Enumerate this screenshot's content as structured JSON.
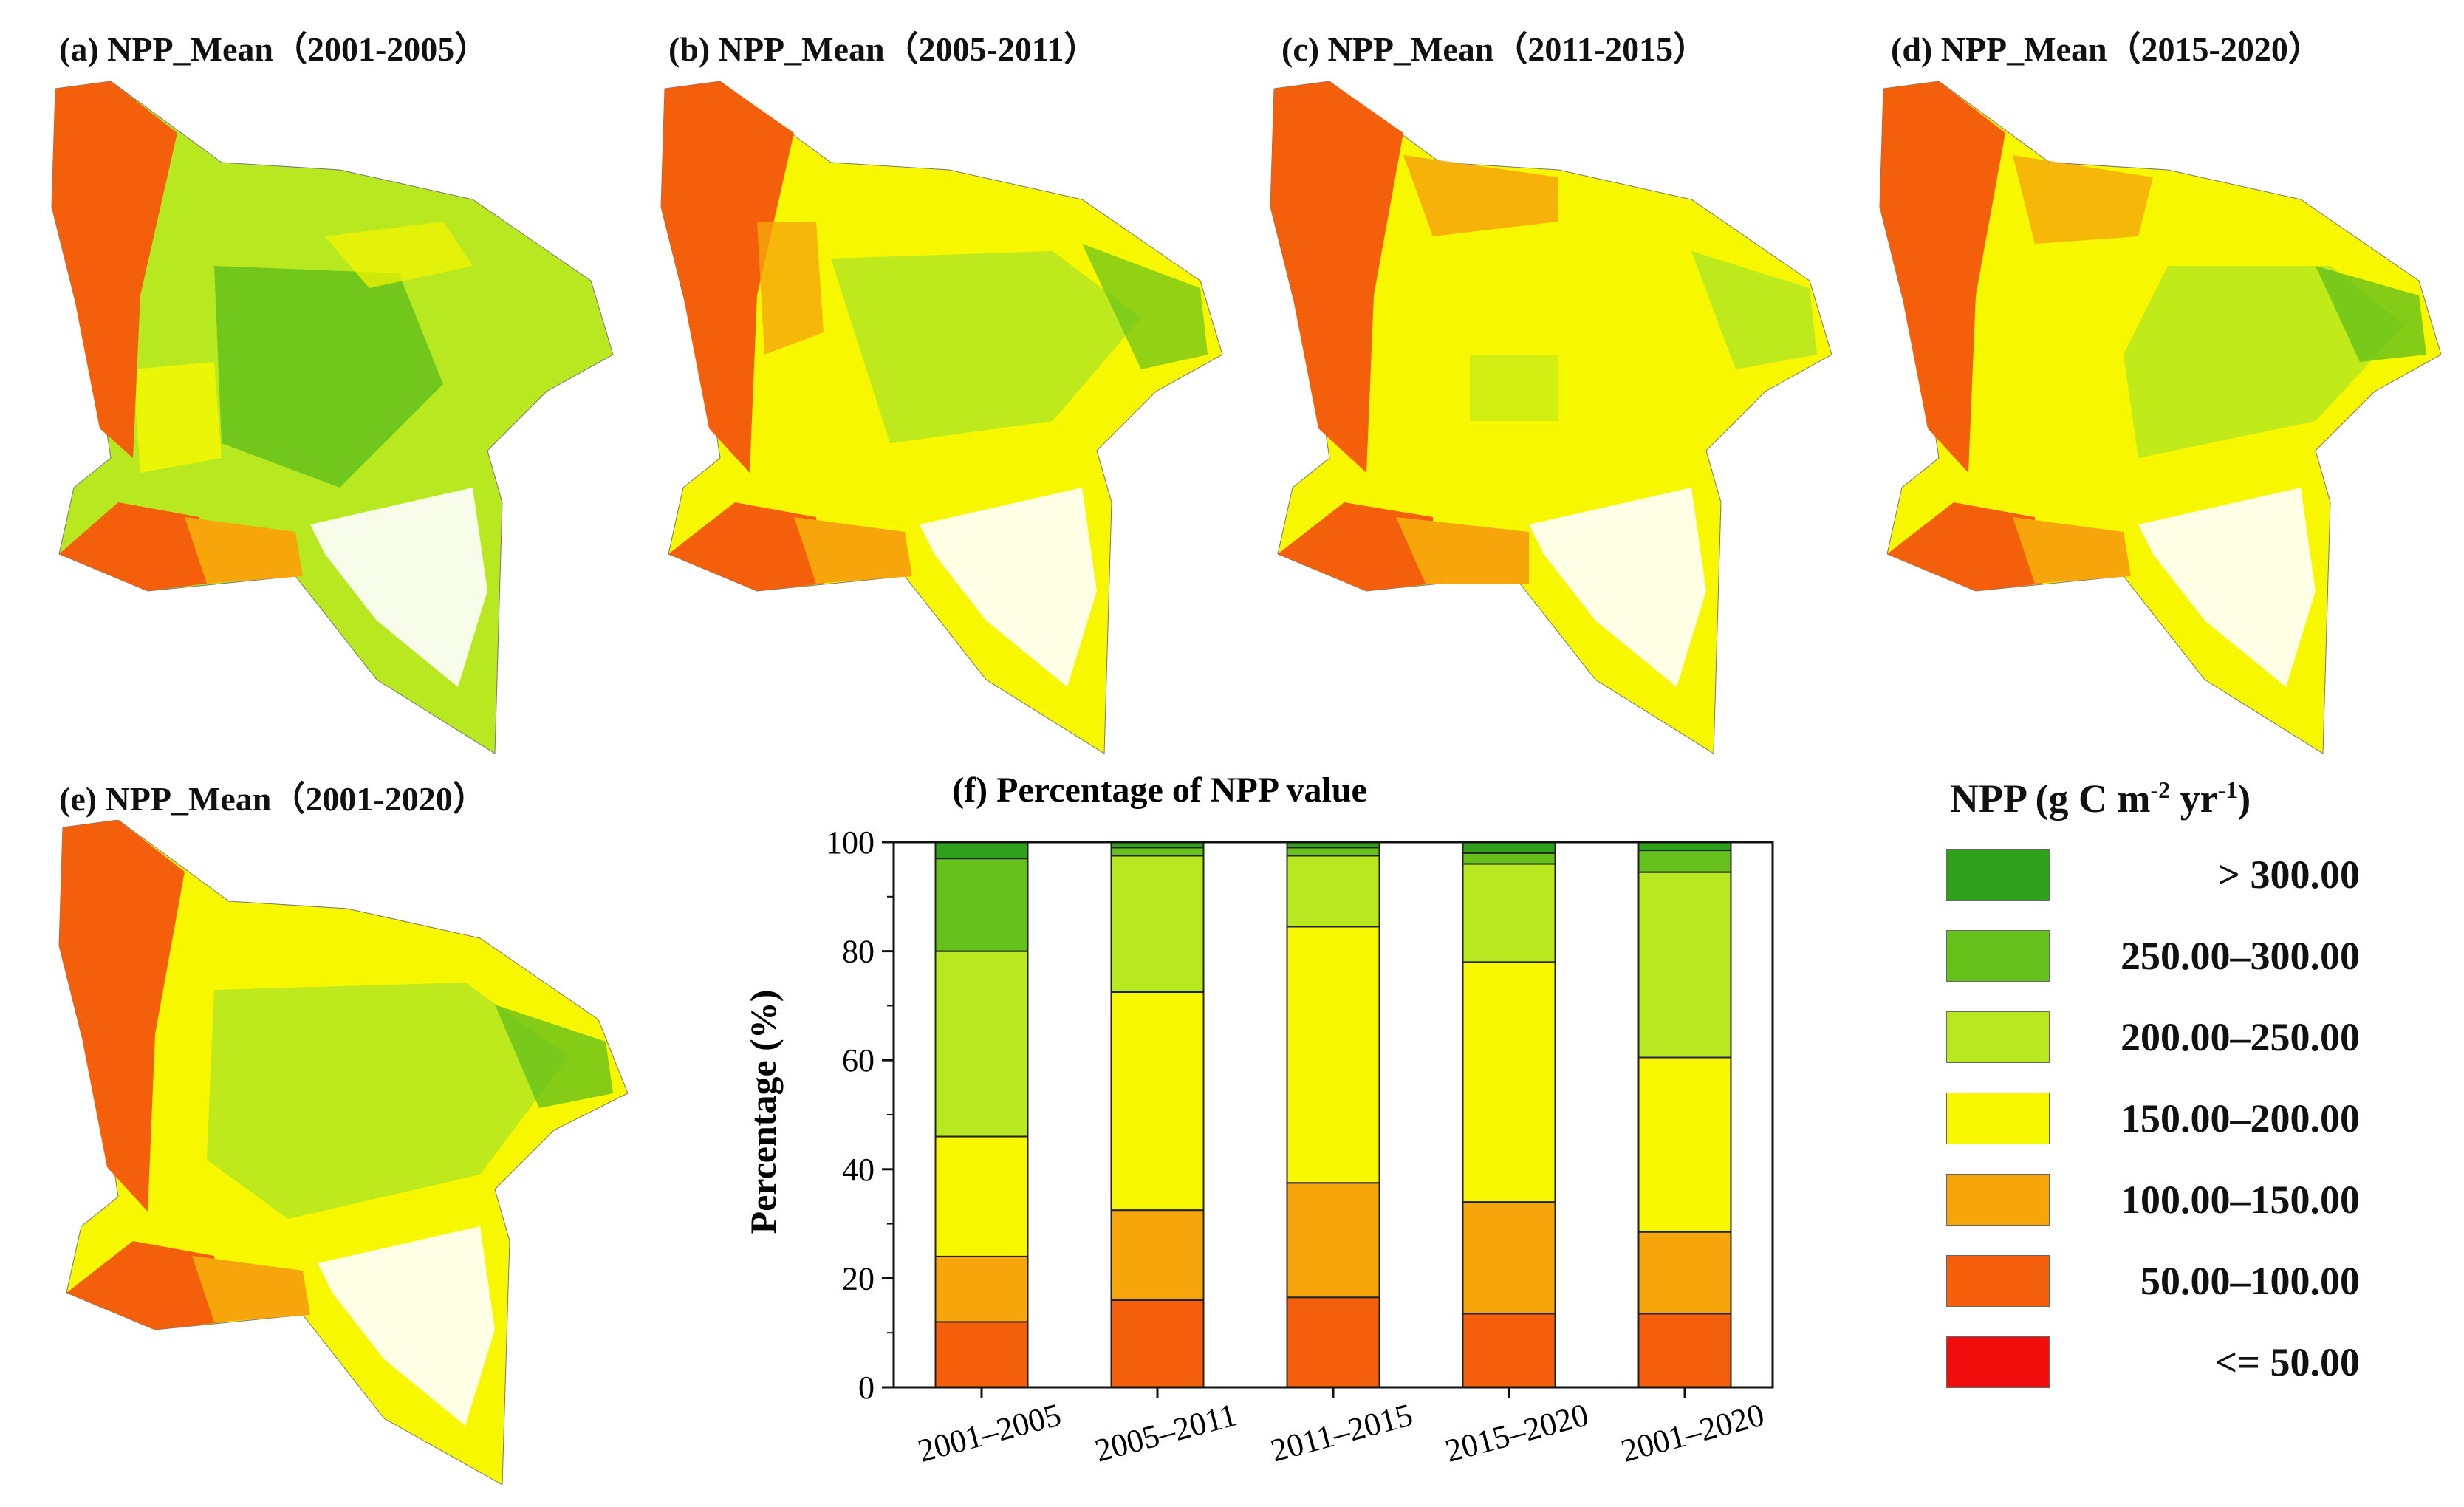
{
  "maps": [
    {
      "label": "(a) NPP_Mean（2001-2005）"
    },
    {
      "label": "(b) NPP_Mean（2005-2011）"
    },
    {
      "label": "(c) NPP_Mean（2011-2015）"
    },
    {
      "label": "(d) NPP_Mean（2015-2020）"
    },
    {
      "label": "(e) NPP_Mean（2001-2020）"
    }
  ],
  "colors": {
    "c300": "#2ea01a",
    "c250": "#66c11c",
    "c200": "#b7e820",
    "c150": "#f7f700",
    "c100": "#f6a60b",
    "c50": "#f45f0c",
    "c0": "#f20d0d"
  },
  "legend": {
    "title": "NPP (g C m",
    "title_exp1": "-2",
    "title_mid": " yr",
    "title_exp2": "-1",
    "title_end": ")",
    "items": [
      {
        "label": "> 300.00",
        "color": "#2ea01a"
      },
      {
        "label": "250.00–300.00",
        "color": "#66c11c"
      },
      {
        "label": "200.00–250.00",
        "color": "#b7e820"
      },
      {
        "label": "150.00–200.00",
        "color": "#f7f700"
      },
      {
        "label": "100.00–150.00",
        "color": "#f6a60b"
      },
      {
        "label": "50.00–100.00",
        "color": "#f45f0c"
      },
      {
        "label": "<= 50.00",
        "color": "#f20d0d"
      }
    ]
  },
  "chart_data": {
    "type": "bar",
    "stacked": true,
    "title": "(f) Percentage of NPP value",
    "xlabel": "",
    "ylabel": "Percentage (%)",
    "ylim": [
      0,
      100
    ],
    "yticks": [
      0,
      20,
      40,
      60,
      80,
      100
    ],
    "categories": [
      "2001–2005",
      "2005–2011",
      "2011–2015",
      "2015–2020",
      "2001–2020"
    ],
    "series": [
      {
        "name": "<= 50.00",
        "color": "#f20d0d",
        "values": [
          0,
          0,
          0,
          0,
          0
        ]
      },
      {
        "name": "50.00–100.00",
        "color": "#f45f0c",
        "values": [
          12,
          16,
          16.5,
          13.5,
          13.5
        ]
      },
      {
        "name": "100.00–150.00",
        "color": "#f6a60b",
        "values": [
          12,
          16.5,
          21,
          20.5,
          15
        ]
      },
      {
        "name": "150.00–200.00",
        "color": "#f7f700",
        "values": [
          22,
          40,
          47,
          44,
          32
        ]
      },
      {
        "name": "200.00–250.00",
        "color": "#b7e820",
        "values": [
          34,
          25,
          13,
          18,
          34
        ]
      },
      {
        "name": "250.00–300.00",
        "color": "#66c11c",
        "values": [
          17,
          1.5,
          1.5,
          2,
          4
        ]
      },
      {
        "name": "> 300.00",
        "color": "#2ea01a",
        "values": [
          3,
          1,
          1,
          2,
          1.5
        ]
      }
    ]
  }
}
